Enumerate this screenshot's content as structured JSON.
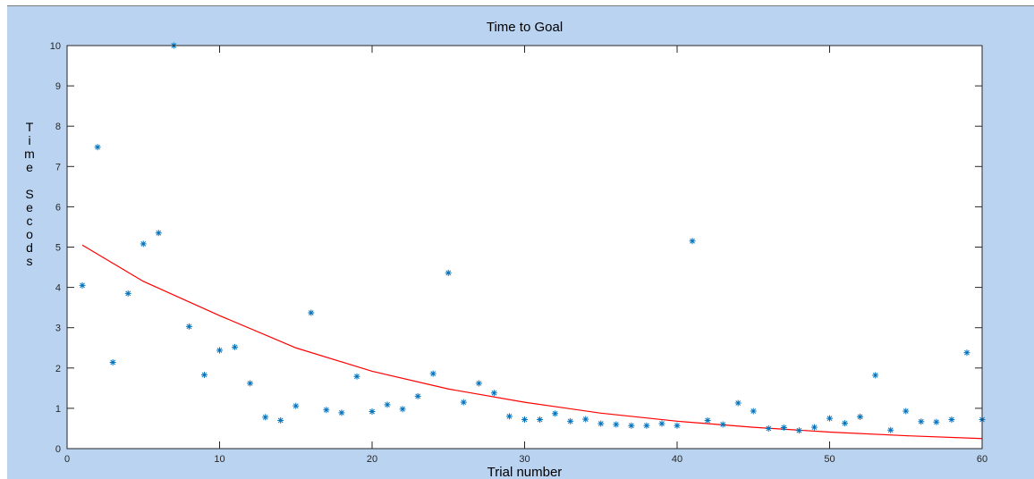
{
  "chart_data": {
    "type": "scatter",
    "title": "Time to Goal",
    "xlabel": "Trial number",
    "ylabel": "Time Secods",
    "xlim": [
      0,
      60
    ],
    "ylim": [
      0,
      10
    ],
    "xticks": [
      0,
      10,
      20,
      30,
      40,
      50,
      60
    ],
    "yticks": [
      0,
      1,
      2,
      3,
      4,
      5,
      6,
      7,
      8,
      9,
      10
    ],
    "grid": false,
    "colors": {
      "marker": "#0072bd",
      "fit": "#ff0000",
      "figure_bg": "#b9d3f0",
      "axes_bg": "#ffffff"
    },
    "series": [
      {
        "type": "scatter",
        "marker": "asterisk",
        "x": [
          1,
          2,
          3,
          4,
          5,
          6,
          7,
          8,
          9,
          10,
          11,
          12,
          13,
          14,
          15,
          16,
          17,
          18,
          19,
          20,
          21,
          22,
          23,
          24,
          25,
          26,
          27,
          28,
          29,
          30,
          31,
          32,
          33,
          34,
          35,
          36,
          37,
          38,
          39,
          40,
          41,
          42,
          43,
          44,
          45,
          46,
          47,
          48,
          49,
          50,
          51,
          52,
          53,
          54,
          55,
          56,
          57,
          58,
          59,
          60
        ],
        "y": [
          4.05,
          7.48,
          2.14,
          3.85,
          5.08,
          5.35,
          10.0,
          3.03,
          1.83,
          2.44,
          2.52,
          1.62,
          0.78,
          0.7,
          1.06,
          3.37,
          0.96,
          0.89,
          1.79,
          0.92,
          1.09,
          0.98,
          1.3,
          1.86,
          4.36,
          1.15,
          1.62,
          1.38,
          0.8,
          0.72,
          0.72,
          0.87,
          0.68,
          0.73,
          0.62,
          0.6,
          0.57,
          0.57,
          0.62,
          0.57,
          5.15,
          0.7,
          0.6,
          1.13,
          0.93,
          0.5,
          0.52,
          0.45,
          0.53,
          0.75,
          0.63,
          0.79,
          1.82,
          0.46,
          0.93,
          0.67,
          0.66,
          0.72,
          2.38,
          0.72
        ]
      },
      {
        "type": "line",
        "x": [
          1,
          5,
          10,
          15,
          20,
          25,
          30,
          35,
          40,
          45,
          50,
          55,
          60
        ],
        "y": [
          5.05,
          4.15,
          3.3,
          2.5,
          1.92,
          1.48,
          1.15,
          0.88,
          0.68,
          0.53,
          0.41,
          0.32,
          0.25
        ]
      }
    ]
  }
}
